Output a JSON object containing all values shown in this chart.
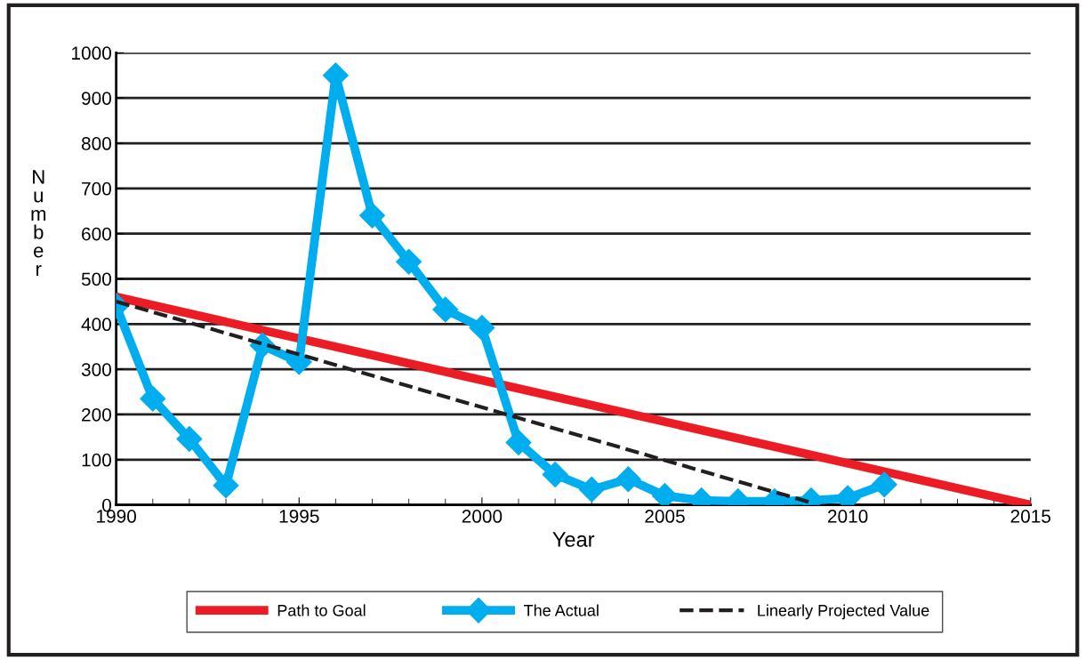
{
  "chart_data": {
    "type": "line",
    "xlabel": "Year",
    "ylabel": "Number",
    "xlim": [
      1990,
      2015
    ],
    "xticks": [
      1990,
      1995,
      2000,
      2005,
      2010,
      2015
    ],
    "ylim": [
      0,
      1000
    ],
    "yticks": [
      0,
      100,
      200,
      300,
      400,
      500,
      600,
      700,
      800,
      900,
      1000
    ],
    "grid": "y",
    "legend": "bottom",
    "series": [
      {
        "name": "Path to Goal",
        "color": "#ec1c24",
        "x": [
          1990,
          2015
        ],
        "values": [
          460,
          0
        ],
        "marker": "none",
        "line_style": "solid"
      },
      {
        "name": "The Actual",
        "color": "#00aeef",
        "x": [
          1990,
          1991,
          1992,
          1993,
          1994,
          1995,
          1996,
          1997,
          1998,
          1999,
          2000,
          2001,
          2002,
          2003,
          2004,
          2005,
          2006,
          2007,
          2008,
          2009,
          2010,
          2011
        ],
        "values": [
          440,
          235,
          146,
          43,
          353,
          316,
          950,
          640,
          538,
          432,
          392,
          138,
          67,
          34,
          57,
          20,
          10,
          8,
          8,
          10,
          15,
          45
        ],
        "marker": "diamond",
        "line_style": "solid"
      },
      {
        "name": "Linearly Projected Value",
        "color": "#231f20",
        "x": [
          1990,
          2009
        ],
        "values": [
          450,
          5
        ],
        "marker": "none",
        "line_style": "dashed"
      }
    ]
  }
}
